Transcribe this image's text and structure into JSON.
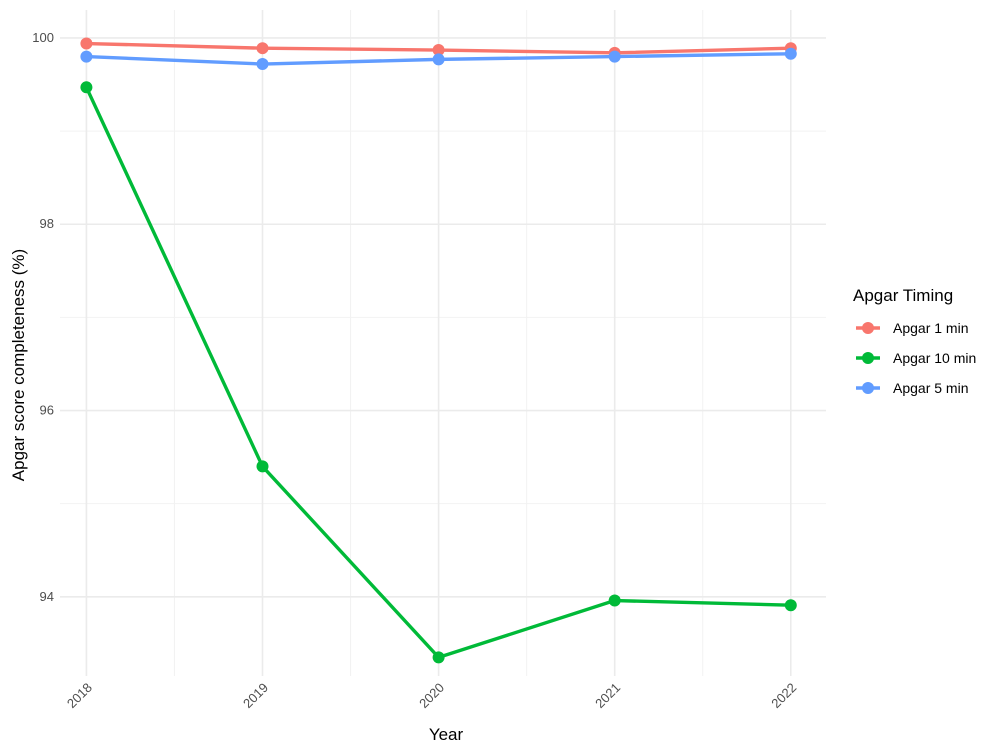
{
  "chart_data": {
    "type": "line",
    "x": [
      2018,
      2019,
      2020,
      2021,
      2022
    ],
    "x_tick_labels": [
      "2018",
      "2019",
      "2020",
      "2021",
      "2022"
    ],
    "xlabel": "Year",
    "ylabel": "Apgar score completeness (%)",
    "y_ticks": [
      94,
      96,
      98,
      100
    ],
    "y_tick_labels": [
      "94",
      "96",
      "98",
      "100"
    ],
    "ylim": [
      93.15,
      100.3
    ],
    "xlim": [
      2017.85,
      2022.2
    ],
    "grid": true,
    "legend": {
      "title": "Apgar Timing",
      "placement": "right"
    },
    "series": [
      {
        "name": "Apgar 1 min",
        "color": "#F8766D",
        "values": [
          99.94,
          99.89,
          99.87,
          99.84,
          99.89
        ]
      },
      {
        "name": "Apgar 10 min",
        "color": "#00BA38",
        "values": [
          99.47,
          95.4,
          93.35,
          93.96,
          93.91
        ]
      },
      {
        "name": "Apgar 5 min",
        "color": "#619CFF",
        "values": [
          99.8,
          99.72,
          99.77,
          99.8,
          99.83
        ]
      }
    ]
  }
}
